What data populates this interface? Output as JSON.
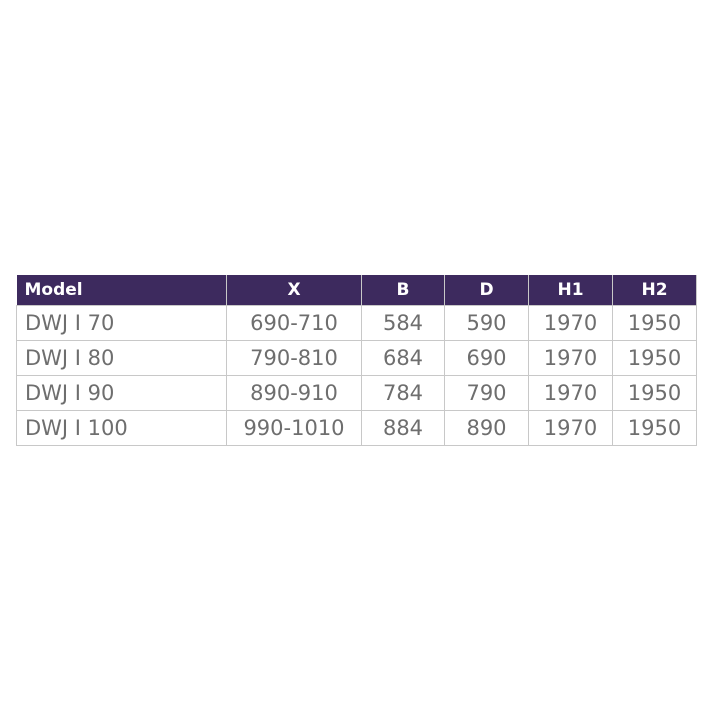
{
  "table": {
    "header_color": "#3d2a5e",
    "columns": [
      "Model",
      "X",
      "B",
      "D",
      "H1",
      "H2"
    ],
    "rows": [
      [
        "DWJ I 70",
        "690-710",
        "584",
        "590",
        "1970",
        "1950"
      ],
      [
        "DWJ I 80",
        "790-810",
        "684",
        "690",
        "1970",
        "1950"
      ],
      [
        "DWJ I 90",
        "890-910",
        "784",
        "790",
        "1970",
        "1950"
      ],
      [
        "DWJ I 100",
        "990-1010",
        "884",
        "890",
        "1970",
        "1950"
      ]
    ]
  }
}
